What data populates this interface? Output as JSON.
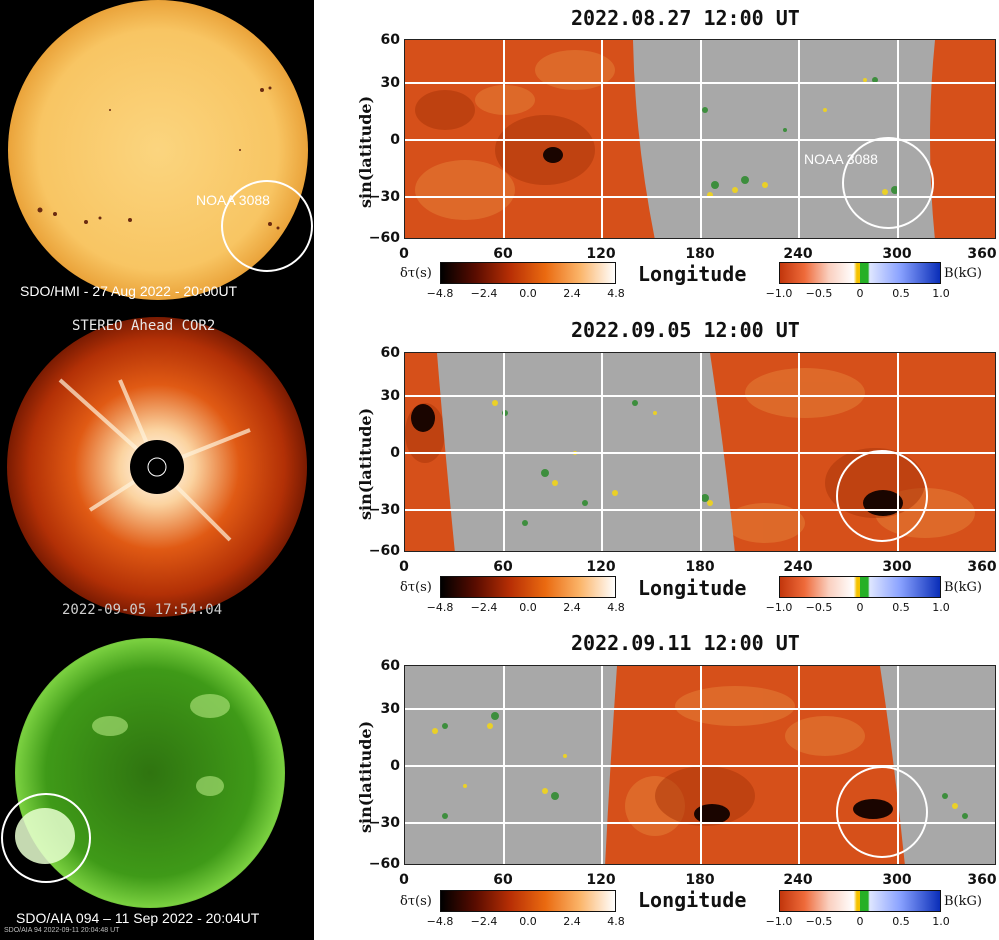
{
  "left_panels": {
    "hmi_caption": "SDO/HMI - 27 Aug 2022 - 20:00UT",
    "hmi_region_label": "NOAA 3088",
    "cor2_title": "STEREO Ahead COR2",
    "cor2_timestamp": "2022-09-05 17:54:04",
    "aia_caption": "SDO/AIA 094 – 11 Sep 2022 - 20:04UT",
    "aia_stamp": "SDO/AIA  94   2022-09-11 20:04:48 UT"
  },
  "maps": [
    {
      "title": "2022.08.27 12:00 UT",
      "region_label": "NOAA 3088"
    },
    {
      "title": "2022.09.05 12:00 UT",
      "region_label": ""
    },
    {
      "title": "2022.09.11 12:00 UT",
      "region_label": ""
    }
  ],
  "axes": {
    "ylabel": "sin(latitude)",
    "xlabel": "Longitude",
    "yticks": [
      "60",
      "30",
      "0",
      "−30",
      "−60"
    ],
    "xticks": [
      "0",
      "60",
      "120",
      "180",
      "240",
      "300",
      "360"
    ]
  },
  "colorbars": {
    "dtau_label": "δτ(s)",
    "dtau_ticks": [
      "−4.8",
      "−2.4",
      "0.0",
      "2.4",
      "4.8"
    ],
    "b_label": "B(kG)",
    "b_ticks": [
      "−1.0",
      "−0.5",
      "0",
      "0.5",
      "1.0"
    ]
  },
  "colors": {
    "sun_hmi": "#f7c060",
    "seismic_map": "#d84a12",
    "magnetogram_gray": "#a8a8a8",
    "aia_green": "#3d9a1a",
    "cor2_red": "#c23a08"
  }
}
